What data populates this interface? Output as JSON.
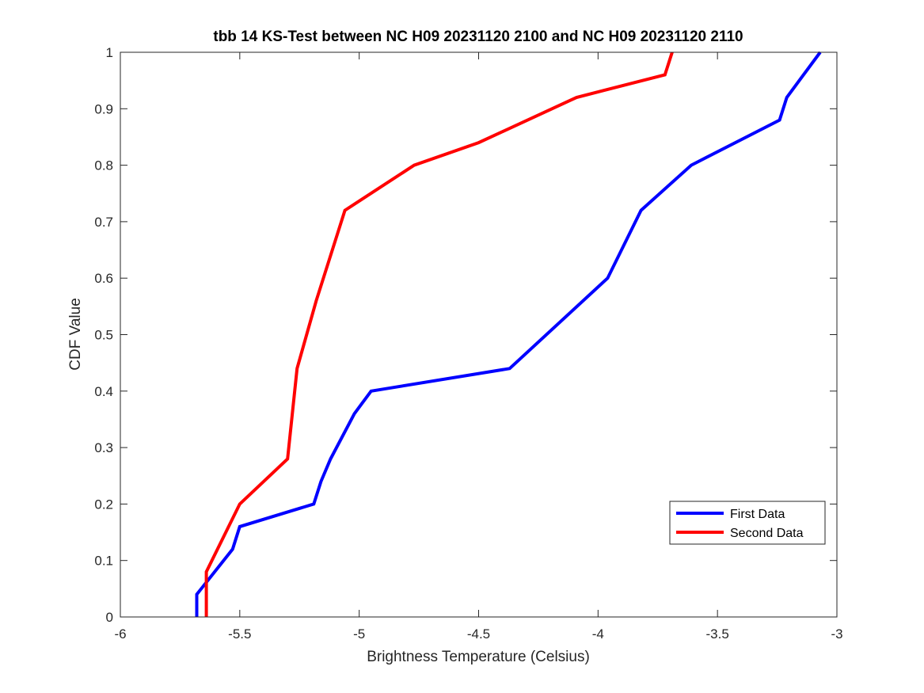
{
  "chart_data": {
    "type": "line",
    "title": "tbb 14 KS-Test between NC H09 20231120 2100 and NC H09 20231120 2110",
    "xlabel": "Brightness Temperature (Celsius)",
    "ylabel": "CDF Value",
    "xlim": [
      -6,
      -3
    ],
    "ylim": [
      0,
      1
    ],
    "xticks": [
      -6,
      -5.5,
      -5,
      -4.5,
      -4,
      -3.5,
      -3
    ],
    "yticks": [
      0,
      0.1,
      0.2,
      0.3,
      0.4,
      0.5,
      0.6,
      0.7,
      0.8,
      0.9,
      1
    ],
    "grid": false,
    "legend_position": "bottom-right",
    "series": [
      {
        "name": "First Data",
        "color": "#0000ff",
        "points": [
          [
            -5.68,
            0
          ],
          [
            -5.68,
            0.04
          ],
          [
            -5.53,
            0.12
          ],
          [
            -5.5,
            0.16
          ],
          [
            -5.19,
            0.2
          ],
          [
            -5.16,
            0.24
          ],
          [
            -5.12,
            0.28
          ],
          [
            -5.02,
            0.36
          ],
          [
            -4.95,
            0.4
          ],
          [
            -4.37,
            0.44
          ],
          [
            -3.96,
            0.6
          ],
          [
            -3.82,
            0.72
          ],
          [
            -3.61,
            0.8
          ],
          [
            -3.24,
            0.88
          ],
          [
            -3.21,
            0.92
          ],
          [
            -3.07,
            1
          ]
        ]
      },
      {
        "name": "Second Data",
        "color": "#ff0000",
        "points": [
          [
            -5.64,
            0
          ],
          [
            -5.64,
            0.08
          ],
          [
            -5.5,
            0.2
          ],
          [
            -5.3,
            0.28
          ],
          [
            -5.26,
            0.44
          ],
          [
            -5.18,
            0.56
          ],
          [
            -5.12,
            0.64
          ],
          [
            -5.06,
            0.72
          ],
          [
            -4.77,
            0.8
          ],
          [
            -4.5,
            0.84
          ],
          [
            -4.09,
            0.92
          ],
          [
            -3.72,
            0.96
          ],
          [
            -3.69,
            1
          ]
        ]
      }
    ]
  }
}
